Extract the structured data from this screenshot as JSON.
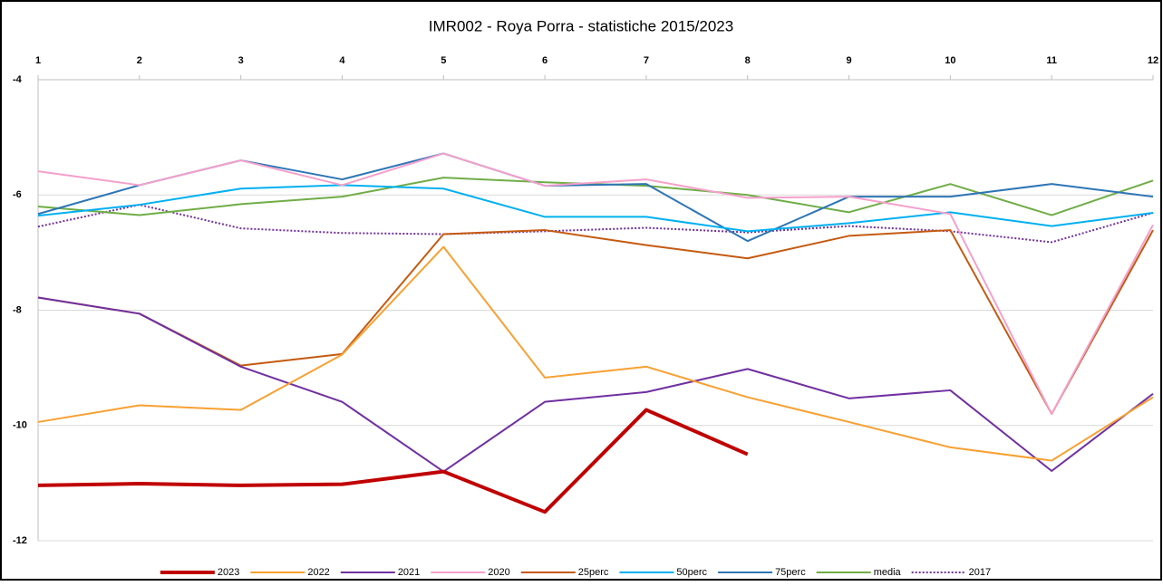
{
  "chart_data": {
    "type": "line",
    "title": "IMR002  - Roya Porra - statistiche 2015/2023",
    "x": [
      1,
      2,
      3,
      4,
      5,
      6,
      7,
      8,
      9,
      10,
      11,
      12
    ],
    "xlim": [
      1,
      12
    ],
    "xticks": [
      1,
      2,
      3,
      4,
      5,
      6,
      7,
      8,
      9,
      10,
      11,
      12
    ],
    "ylim": [
      -12,
      -4
    ],
    "yticks": [
      -4,
      -6,
      -8,
      -10,
      -12
    ],
    "grid": true,
    "legend": "bottom",
    "series": [
      {
        "name": "2023",
        "color": "#c00000",
        "line_width": 4,
        "values": [
          -11.04,
          -11.01,
          -11.04,
          -11.02,
          -10.8,
          -11.5,
          -9.73,
          -10.5,
          null,
          null,
          null,
          null
        ]
      },
      {
        "name": "2022",
        "color": "#f9a031",
        "values": [
          -9.94,
          -9.65,
          -9.73,
          -8.77,
          -6.9,
          -9.17,
          -8.98,
          -9.51,
          -9.94,
          -10.38,
          -10.61,
          -9.51
        ]
      },
      {
        "name": "2021",
        "color": "#7030a0",
        "values": [
          -7.78,
          -8.06,
          -8.98,
          -9.59,
          -10.8,
          -9.59,
          -9.42,
          -9.02,
          -9.53,
          -9.39,
          -10.79,
          -9.45
        ]
      },
      {
        "name": "2020",
        "color": "#f4a0cc",
        "values": [
          -5.59,
          -5.83,
          -5.4,
          -5.83,
          -5.28,
          -5.84,
          -5.73,
          -6.05,
          -6.03,
          -6.33,
          -9.8,
          -6.52
        ]
      },
      {
        "name": "25perc",
        "color": "#c55a11",
        "values": [
          -7.78,
          -8.06,
          -8.96,
          -8.76,
          -6.68,
          -6.61,
          -6.87,
          -7.1,
          -6.71,
          -6.61,
          -9.8,
          -6.61
        ]
      },
      {
        "name": "50perc",
        "color": "#00b0f0",
        "values": [
          -6.36,
          -6.17,
          -5.89,
          -5.83,
          -5.89,
          -6.38,
          -6.38,
          -6.63,
          -6.49,
          -6.3,
          -6.54,
          -6.31
        ]
      },
      {
        "name": "75perc",
        "color": "#2e75b6",
        "values": [
          -6.33,
          -5.83,
          -5.4,
          -5.73,
          -5.28,
          -5.84,
          -5.81,
          -6.8,
          -6.03,
          -6.03,
          -5.81,
          -6.03
        ]
      },
      {
        "name": "media",
        "color": "#70ad47",
        "values": [
          -6.2,
          -6.35,
          -6.16,
          -6.03,
          -5.7,
          -5.78,
          -5.84,
          -6.0,
          -6.3,
          -5.81,
          -6.35,
          -5.75
        ]
      },
      {
        "name": "2017",
        "color": "#7030a0",
        "dash": "dotted",
        "values": [
          -6.55,
          -6.17,
          -6.58,
          -6.66,
          -6.68,
          -6.63,
          -6.57,
          -6.65,
          -6.54,
          -6.63,
          -6.82,
          -6.31
        ]
      }
    ]
  }
}
